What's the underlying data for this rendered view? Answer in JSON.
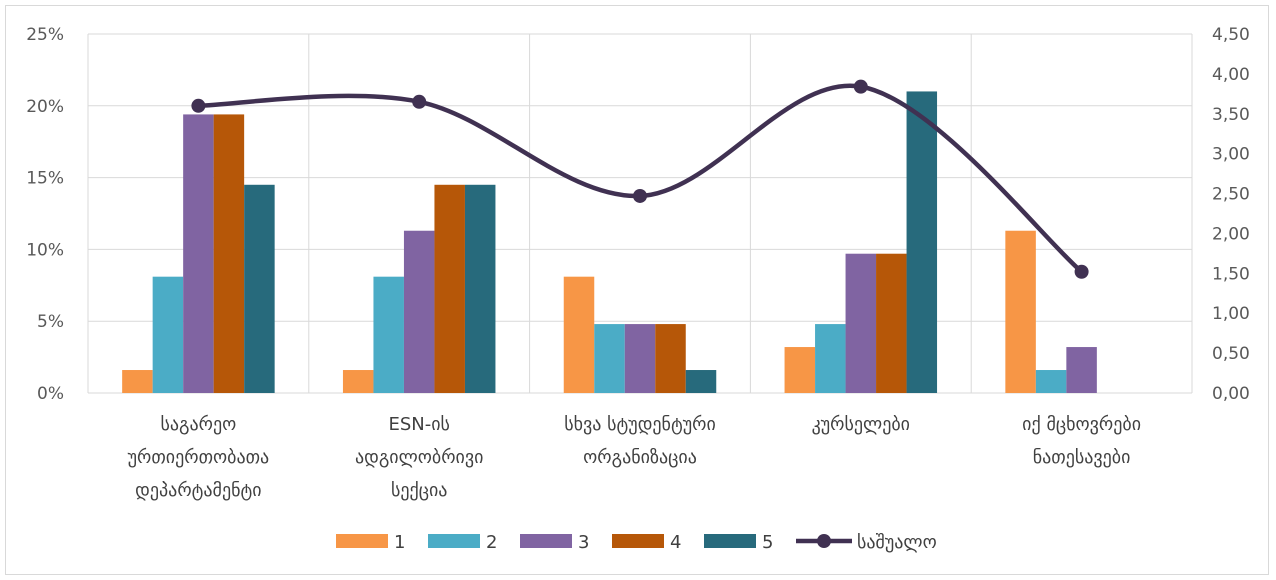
{
  "chart_data": {
    "type": "bar",
    "categories": [
      [
        "საგარეო",
        "ურთიერთობათა",
        "დეპარტამენტი"
      ],
      [
        "ESN-ის",
        "ადგილობრივი",
        "სექცია"
      ],
      [
        "სხვა სტუდენტური",
        "ორგანიზაცია"
      ],
      [
        "კურსელები"
      ],
      [
        "იქ მცხოვრები",
        "ნათესავები"
      ]
    ],
    "series": [
      {
        "name": "1",
        "color": "#f79646",
        "values": [
          1.6,
          1.6,
          8.1,
          3.2,
          11.3
        ]
      },
      {
        "name": "2",
        "color": "#4bacc6",
        "values": [
          8.1,
          8.1,
          4.8,
          4.8,
          1.6
        ]
      },
      {
        "name": "3",
        "color": "#8064a2",
        "values": [
          19.4,
          11.3,
          4.8,
          9.7,
          3.2
        ]
      },
      {
        "name": "4",
        "color": "#b65708",
        "values": [
          19.4,
          14.5,
          4.8,
          9.7,
          0
        ]
      },
      {
        "name": "5",
        "color": "#276a7c",
        "values": [
          14.5,
          14.5,
          1.6,
          21.0,
          0
        ]
      }
    ],
    "line_series": {
      "name": "საშუალო",
      "color": "#403152",
      "axis": "right",
      "values": [
        3.6,
        3.65,
        2.47,
        3.84,
        1.52
      ]
    },
    "y_left": {
      "min": 0,
      "max": 25,
      "step": 5,
      "tick_labels": [
        "0%",
        "5%",
        "10%",
        "15%",
        "20%",
        "25%"
      ]
    },
    "y_right": {
      "min": 0,
      "max": 4.5,
      "step": 0.5,
      "tick_labels": [
        "0,00",
        "0,50",
        "1,00",
        "1,50",
        "2,00",
        "2,50",
        "3,00",
        "3,50",
        "4,00",
        "4,50"
      ]
    },
    "grid": "vertical category separators",
    "legend_position": "bottom",
    "title": ""
  }
}
